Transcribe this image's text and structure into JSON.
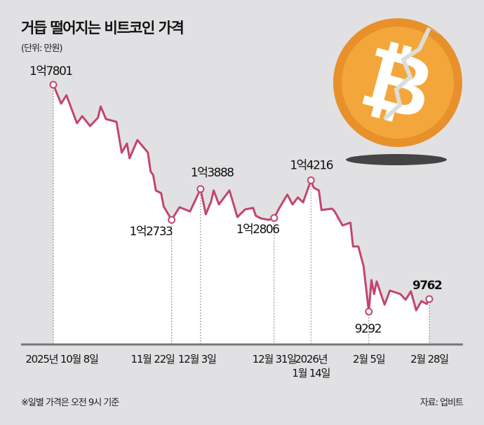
{
  "title": "거듭 떨어지는 비트코인 가격",
  "unit": "(단위: 만원)",
  "note": "※일별 가격은 오전 9시 기준",
  "source": "자료: 업비트",
  "colors": {
    "line": "#c2466f",
    "background": "#e1e1e3",
    "coin": "#f0a030",
    "coin_dark": "#e08a1e"
  },
  "icon": "broken-bitcoin-icon",
  "chart_data": {
    "type": "line",
    "title": "거듭 떨어지는 비트코인 가격",
    "ylabel": "(단위: 만원)",
    "ylim": [
      8060,
      17801
    ],
    "grid": false,
    "x": [
      "2025-10-08",
      "2025-10-11",
      "2025-10-13",
      "2025-10-17",
      "2025-10-19",
      "2025-10-22",
      "2025-10-25",
      "2025-10-26",
      "2025-10-28",
      "2025-11-01",
      "2025-11-03",
      "2025-11-05",
      "2025-11-06",
      "2025-11-09",
      "2025-11-13",
      "2025-11-14",
      "2025-11-15",
      "2025-11-16",
      "2025-11-18",
      "2025-11-19",
      "2025-11-22",
      "2025-11-25",
      "2025-11-29",
      "2025-12-03",
      "2025-12-05",
      "2025-12-07",
      "2025-12-08",
      "2025-12-10",
      "2025-12-12",
      "2025-12-14",
      "2025-12-17",
      "2025-12-20",
      "2025-12-23",
      "2025-12-24",
      "2025-12-26",
      "2025-12-29",
      "2025-12-31",
      "2026-01-02",
      "2026-01-05",
      "2026-01-07",
      "2026-01-09",
      "2026-01-11",
      "2026-01-14",
      "2026-01-15",
      "2026-01-17",
      "2026-01-18",
      "2026-01-22",
      "2026-01-23",
      "2026-01-26",
      "2026-01-29",
      "2026-01-30",
      "2026-02-01",
      "2026-02-03",
      "2026-02-05",
      "2026-02-06",
      "2026-02-07",
      "2026-02-08",
      "2026-02-11",
      "2026-02-13",
      "2026-02-17",
      "2026-02-19",
      "2026-02-21",
      "2026-02-23",
      "2026-02-25",
      "2026-02-27",
      "2026-02-28"
    ],
    "values": [
      17801,
      17092,
      17407,
      16357,
      16619,
      16252,
      16567,
      16987,
      16514,
      16409,
      15254,
      15595,
      15044,
      15726,
      15254,
      14545,
      14414,
      13836,
      13731,
      13232,
      12733,
      13206,
      13048,
      13888,
      12943,
      13416,
      13836,
      13311,
      13573,
      13836,
      12838,
      13127,
      13180,
      12891,
      12785,
      12733,
      12806,
      13180,
      13678,
      13311,
      13573,
      13389,
      14216,
      13941,
      13836,
      13100,
      13153,
      13048,
      12523,
      12628,
      11735,
      11735,
      11000,
      9292,
      10475,
      9950,
      10422,
      9555,
      10081,
      9950,
      9739,
      10054,
      9345,
      9686,
      9581,
      9762
    ],
    "annotations": [
      {
        "date": "2025-10-08",
        "label": "1억7801"
      },
      {
        "date": "2025-11-22",
        "label": "1억2733"
      },
      {
        "date": "2025-12-03",
        "label": "1억3888"
      },
      {
        "date": "2025-12-31",
        "label": "1억2806"
      },
      {
        "date": "2026-01-14",
        "label": "1억4216"
      },
      {
        "date": "2026-02-05",
        "label": "9292"
      },
      {
        "date": "2026-02-28",
        "label": "9762"
      }
    ],
    "tick_labels": [
      {
        "date": "2025-10-08",
        "lines": [
          "2025년 10월 8일"
        ]
      },
      {
        "date": "2025-11-22",
        "lines": [
          "11월 22일"
        ]
      },
      {
        "date": "2025-12-03",
        "lines": [
          "12월 3일"
        ]
      },
      {
        "date": "2025-12-31",
        "lines": [
          "12월 31일"
        ]
      },
      {
        "date": "2026-01-14",
        "lines": [
          "2026년",
          "1월 14일"
        ]
      },
      {
        "date": "2026-02-05",
        "lines": [
          "2월 5일"
        ]
      },
      {
        "date": "2026-02-28",
        "lines": [
          "2월 28일"
        ]
      }
    ]
  }
}
